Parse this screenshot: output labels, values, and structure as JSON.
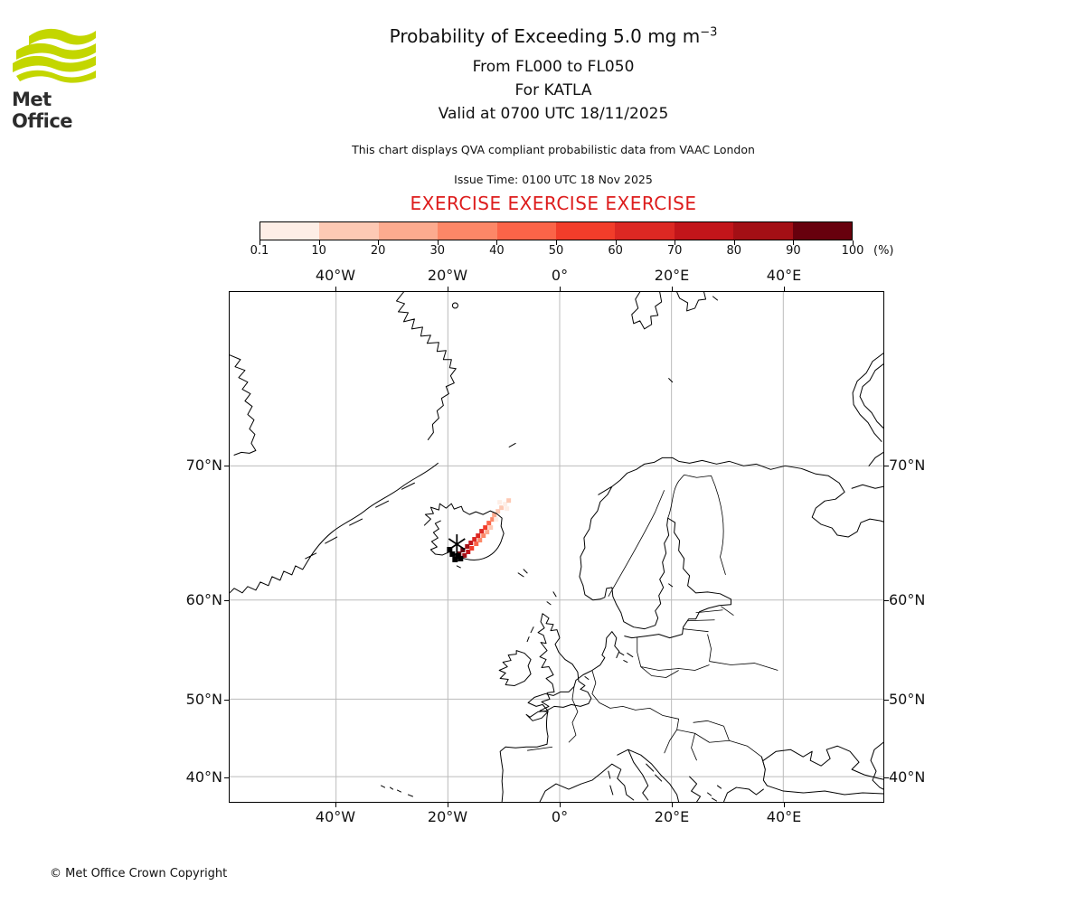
{
  "logo": {
    "brand": "Met Office",
    "wave_color": "#c3d600",
    "text_color": "#2d2d2d"
  },
  "header": {
    "title_prefix": "Probability of Exceeding 5.0 mg m",
    "title_exponent": "−3",
    "line2": "From FL000 to FL050",
    "line3": "For KATLA",
    "line4": "Valid at 0700 UTC 18/11/2025",
    "note": "This chart displays QVA compliant probabilistic data from VAAC London",
    "issue_time": "Issue Time: 0100 UTC 18 Nov 2025",
    "exercise_banner": "EXERCISE EXERCISE EXERCISE",
    "exercise_color": "#dd1c1c"
  },
  "colorbar": {
    "unit_label": "(%)",
    "tick_labels": [
      "0.1",
      "10",
      "20",
      "30",
      "40",
      "50",
      "60",
      "70",
      "80",
      "90",
      "100"
    ],
    "segment_colors": [
      "#feeee6",
      "#fdc9b4",
      "#fcab8f",
      "#fc8767",
      "#fb6448",
      "#f23d2a",
      "#dc2823",
      "#c2151a",
      "#a30f15",
      "#67000d"
    ]
  },
  "map": {
    "lon_labels": [
      "40°W",
      "20°W",
      "0°",
      "20°E",
      "40°E"
    ],
    "lat_labels": [
      "70°N",
      "60°N",
      "50°N",
      "40°N"
    ],
    "volcano": {
      "name": "KATLA",
      "marker": "black-star"
    }
  },
  "footer": {
    "copyright": "© Met Office Crown Copyright"
  },
  "chart_data": {
    "type": "heatmap",
    "title": "Probability of Exceeding 5.0 mg m^-3",
    "flight_levels": "FL000 to FL050",
    "volcano": "KATLA",
    "valid_time": "0700 UTC 18/11/2025",
    "issue_time": "0100 UTC 18 Nov 2025",
    "source": "VAAC London",
    "status": "EXERCISE",
    "unit": "%",
    "probability_bins": [
      0.1,
      10,
      20,
      30,
      40,
      50,
      60,
      70,
      80,
      90,
      100
    ],
    "lon_ticks_deg": [
      -40,
      -20,
      0,
      20,
      40
    ],
    "lat_ticks_deg": [
      70,
      60,
      50,
      40
    ],
    "plume_description": "Ash probability plume extends northeast from Katla (southern Iceland); highest probabilities (>90%) adjacent to the volcano, decreasing below 10% toward the northeast tail.",
    "cells": [
      [
        256,
        284,
        9
      ],
      [
        252,
        288,
        9
      ],
      [
        258,
        290,
        8
      ],
      [
        261,
        280,
        8
      ],
      [
        262,
        286,
        7
      ],
      [
        265,
        276,
        7
      ],
      [
        266,
        282,
        5
      ],
      [
        269,
        272,
        6
      ],
      [
        273,
        268,
        6
      ],
      [
        271,
        277,
        4
      ],
      [
        275,
        273,
        3
      ],
      [
        277,
        263,
        6
      ],
      [
        281,
        259,
        5
      ],
      [
        279,
        268,
        3
      ],
      [
        283,
        264,
        2
      ],
      [
        285,
        254,
        4
      ],
      [
        289,
        250,
        3
      ],
      [
        287,
        259,
        1
      ],
      [
        291,
        245,
        2
      ],
      [
        295,
        241,
        1
      ],
      [
        293,
        250,
        0
      ],
      [
        299,
        237,
        1
      ],
      [
        303,
        233,
        0
      ],
      [
        297,
        231,
        0
      ],
      [
        305,
        238,
        0
      ],
      [
        307,
        229,
        1
      ]
    ],
    "marker_cells": [
      [
        244,
        288
      ],
      [
        250,
        290
      ],
      [
        247,
        294
      ],
      [
        253,
        293
      ],
      [
        241,
        283
      ]
    ]
  }
}
